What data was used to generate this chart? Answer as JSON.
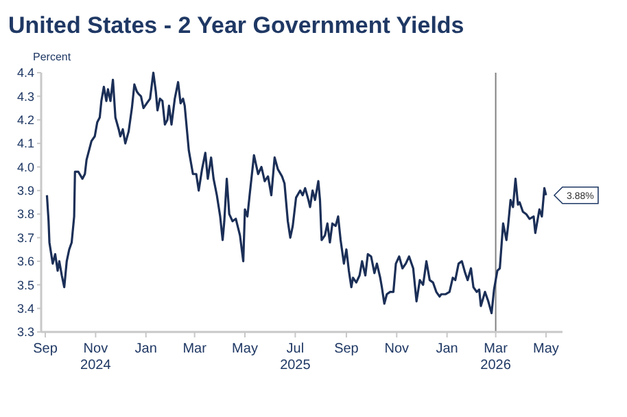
{
  "chart_data": {
    "type": "line",
    "title": "United States - 2 Year Government Yields",
    "ylabel": "Percent",
    "xlim": [
      "2024-08-27",
      "2026-05-21"
    ],
    "ylim": [
      3.3,
      4.4
    ],
    "yticks": [
      3.3,
      3.4,
      3.5,
      3.6,
      3.7,
      3.8,
      3.9,
      {
        "value": 4.0,
        "label": "4.0"
      },
      4.1,
      4.2,
      4.3,
      4.4
    ],
    "xticks": [
      {
        "value": "2024-09-01",
        "label": "Sep"
      },
      {
        "value": "2024-11-01",
        "label": "Nov\n2024"
      },
      {
        "value": "2025-01-01",
        "label": "Jan"
      },
      {
        "value": "2025-03-01",
        "label": "Mar"
      },
      {
        "value": "2025-05-01",
        "label": "May"
      },
      {
        "value": "2025-07-01",
        "label": "Jul\n2025"
      },
      {
        "value": "2025-09-01",
        "label": "Sep"
      },
      {
        "value": "2025-11-01",
        "label": "Nov"
      },
      {
        "value": "2026-01-01",
        "label": "Jan"
      },
      {
        "value": "2026-03-01",
        "label": "Mar\n2026"
      },
      {
        "value": "2026-05-01",
        "label": "May"
      }
    ],
    "grid": false,
    "marker": "none",
    "line_style": "solid",
    "ref_lines": [
      {
        "axis": "x",
        "value": "2026-03-01",
        "color": "#808080"
      }
    ],
    "annotations": [
      {
        "text": "3.88%",
        "x": "2026-05-01",
        "y": 3.88
      }
    ],
    "x": [
      "2024-09-03",
      "2024-09-05",
      "2024-09-06",
      "2024-09-10",
      "2024-09-13",
      "2024-09-16",
      "2024-09-18",
      "2024-09-21",
      "2024-09-24",
      "2024-09-27",
      "2024-09-30",
      "2024-10-03",
      "2024-10-06",
      "2024-10-07",
      "2024-10-11",
      "2024-10-16",
      "2024-10-19",
      "2024-10-21",
      "2024-10-27",
      "2024-10-31",
      "2024-11-03",
      "2024-11-06",
      "2024-11-08",
      "2024-11-11",
      "2024-11-14",
      "2024-11-16",
      "2024-11-19",
      "2024-11-22",
      "2024-11-25",
      "2024-11-29",
      "2024-12-01",
      "2024-12-04",
      "2024-12-07",
      "2024-12-11",
      "2024-12-15",
      "2024-12-18",
      "2024-12-21",
      "2024-12-23",
      "2024-12-26",
      "2024-12-29",
      "2025-01-02",
      "2025-01-06",
      "2025-01-10",
      "2025-01-13",
      "2025-01-15",
      "2025-01-18",
      "2025-01-21",
      "2025-01-24",
      "2025-01-27",
      "2025-01-29",
      "2025-02-01",
      "2025-02-05",
      "2025-02-09",
      "2025-02-12",
      "2025-02-15",
      "2025-02-17",
      "2025-02-22",
      "2025-02-27",
      "2025-03-03",
      "2025-03-06",
      "2025-03-10",
      "2025-03-14",
      "2025-03-17",
      "2025-03-21",
      "2025-03-24",
      "2025-03-28",
      "2025-04-01",
      "2025-04-04",
      "2025-04-06",
      "2025-04-09",
      "2025-04-12",
      "2025-04-16",
      "2025-04-20",
      "2025-04-25",
      "2025-04-29",
      "2025-05-01",
      "2025-05-04",
      "2025-05-07",
      "2025-05-12",
      "2025-05-17",
      "2025-05-21",
      "2025-05-25",
      "2025-05-29",
      "2025-06-02",
      "2025-06-06",
      "2025-06-10",
      "2025-06-15",
      "2025-06-18",
      "2025-06-22",
      "2025-06-25",
      "2025-06-28",
      "2025-07-02",
      "2025-07-07",
      "2025-07-10",
      "2025-07-13",
      "2025-07-17",
      "2025-07-19",
      "2025-07-22",
      "2025-07-25",
      "2025-07-29",
      "2025-07-31",
      "2025-08-02",
      "2025-08-06",
      "2025-08-09",
      "2025-08-12",
      "2025-08-15",
      "2025-08-19",
      "2025-08-22",
      "2025-08-25",
      "2025-08-29",
      "2025-09-01",
      "2025-09-04",
      "2025-09-07",
      "2025-09-09",
      "2025-09-13",
      "2025-09-17",
      "2025-09-20",
      "2025-09-24",
      "2025-09-27",
      "2025-10-01",
      "2025-10-05",
      "2025-10-08",
      "2025-10-12",
      "2025-10-14",
      "2025-10-17",
      "2025-10-20",
      "2025-10-24",
      "2025-10-28",
      "2025-10-31",
      "2025-11-04",
      "2025-11-08",
      "2025-11-12",
      "2025-11-16",
      "2025-11-21",
      "2025-11-25",
      "2025-11-29",
      "2025-12-03",
      "2025-12-07",
      "2025-12-11",
      "2025-12-15",
      "2025-12-19",
      "2025-12-23",
      "2025-12-25",
      "2025-12-30",
      "2026-01-04",
      "2026-01-08",
      "2026-01-11",
      "2026-01-15",
      "2026-01-19",
      "2026-01-23",
      "2026-01-26",
      "2026-01-30",
      "2026-02-02",
      "2026-02-06",
      "2026-02-09",
      "2026-02-11",
      "2026-02-16",
      "2026-02-20",
      "2026-02-24",
      "2026-02-27",
      "2026-03-03",
      "2026-03-06",
      "2026-03-10",
      "2026-03-14",
      "2026-03-16",
      "2026-03-19",
      "2026-03-22",
      "2026-03-25",
      "2026-03-28",
      "2026-03-30",
      "2026-04-03",
      "2026-04-07",
      "2026-04-11",
      "2026-04-16",
      "2026-04-18",
      "2026-04-23",
      "2026-04-26",
      "2026-04-29",
      "2026-05-01"
    ],
    "series": [
      {
        "color": "#1b2f57",
        "values": [
          3.88,
          3.77,
          3.68,
          3.59,
          3.63,
          3.56,
          3.6,
          3.54,
          3.49,
          3.6,
          3.65,
          3.68,
          3.79,
          3.98,
          3.98,
          3.95,
          3.97,
          4.03,
          4.11,
          4.13,
          4.19,
          4.21,
          4.28,
          4.34,
          4.28,
          4.33,
          4.28,
          4.37,
          4.21,
          4.16,
          4.13,
          4.16,
          4.1,
          4.15,
          4.25,
          4.35,
          4.32,
          4.31,
          4.3,
          4.25,
          4.27,
          4.29,
          4.4,
          4.32,
          4.24,
          4.29,
          4.28,
          4.18,
          4.2,
          4.26,
          4.18,
          4.29,
          4.36,
          4.27,
          4.29,
          4.26,
          4.07,
          3.97,
          3.97,
          3.9,
          3.99,
          4.06,
          3.95,
          4.04,
          3.95,
          3.88,
          3.79,
          3.69,
          3.77,
          3.95,
          3.8,
          3.77,
          3.78,
          3.71,
          3.6,
          3.82,
          3.79,
          3.89,
          4.05,
          3.97,
          4.0,
          3.94,
          3.96,
          3.88,
          4.04,
          3.99,
          3.96,
          3.93,
          3.77,
          3.7,
          3.75,
          3.87,
          3.9,
          3.88,
          3.91,
          3.86,
          3.83,
          3.9,
          3.86,
          3.94,
          3.86,
          3.69,
          3.71,
          3.76,
          3.68,
          3.76,
          3.75,
          3.79,
          3.69,
          3.59,
          3.65,
          3.56,
          3.49,
          3.53,
          3.51,
          3.54,
          3.6,
          3.54,
          3.63,
          3.62,
          3.55,
          3.59,
          3.53,
          3.49,
          3.42,
          3.46,
          3.47,
          3.47,
          3.59,
          3.62,
          3.57,
          3.59,
          3.62,
          3.57,
          3.43,
          3.52,
          3.5,
          3.6,
          3.52,
          3.51,
          3.47,
          3.45,
          3.46,
          3.46,
          3.47,
          3.53,
          3.52,
          3.59,
          3.6,
          3.55,
          3.52,
          3.57,
          3.49,
          3.47,
          3.48,
          3.41,
          3.47,
          3.43,
          3.38,
          3.48,
          3.56,
          3.57,
          3.76,
          3.69,
          3.75,
          3.86,
          3.83,
          3.95,
          3.84,
          3.85,
          3.81,
          3.8,
          3.78,
          3.79,
          3.72,
          3.82,
          3.79,
          3.91,
          3.88
        ]
      }
    ]
  }
}
